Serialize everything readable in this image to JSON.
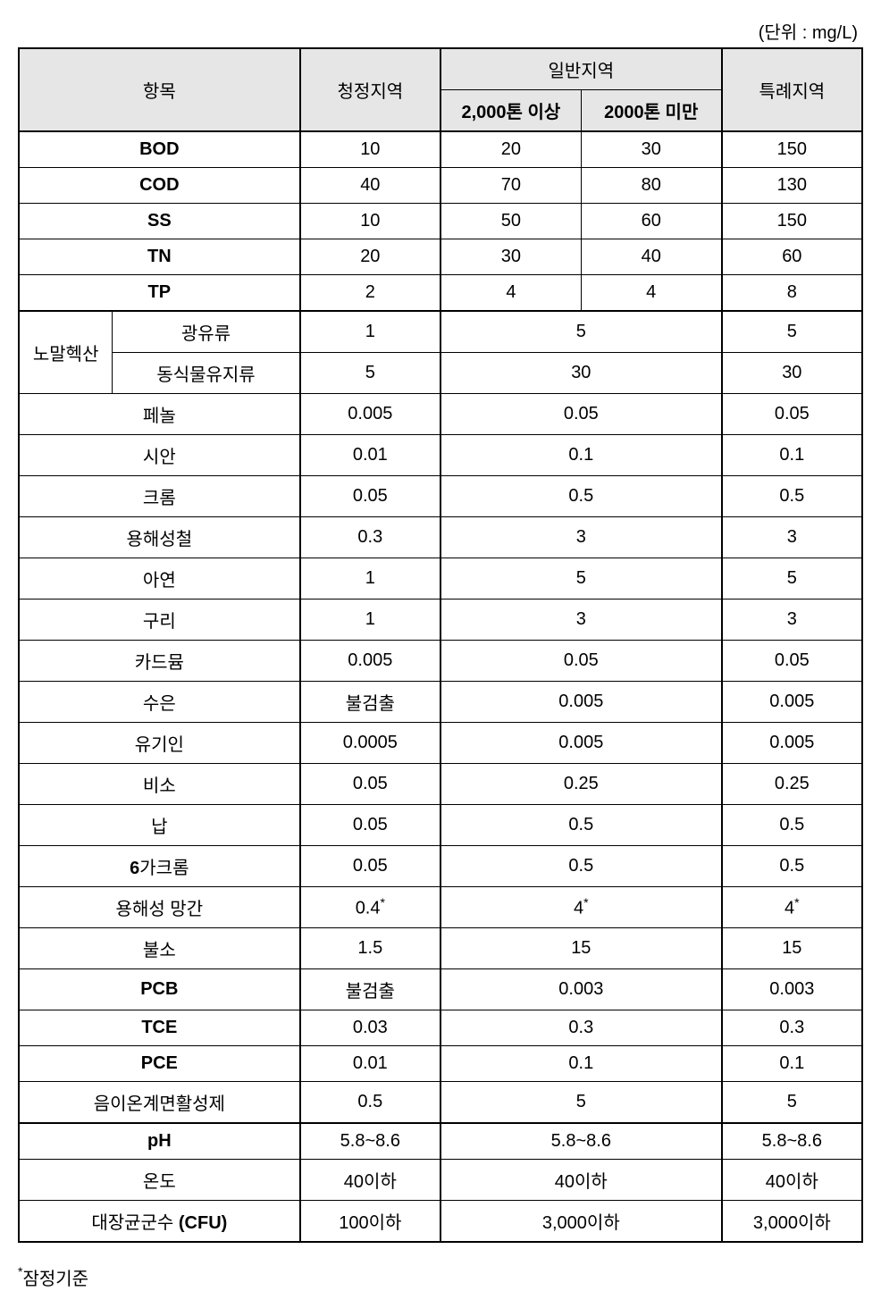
{
  "unit_label": "(단위 : mg/L)",
  "headers": {
    "item": "항목",
    "clean": "청정지역",
    "general": "일반지역",
    "gen_over": "2,000톤 이상",
    "gen_under": "2000톤 미만",
    "special": "특례지역"
  },
  "section1": [
    {
      "label": "BOD",
      "bold": true,
      "clean": "10",
      "over": "20",
      "under": "30",
      "special": "150"
    },
    {
      "label": "COD",
      "bold": true,
      "clean": "40",
      "over": "70",
      "under": "80",
      "special": "130"
    },
    {
      "label": "SS",
      "bold": true,
      "clean": "10",
      "over": "50",
      "under": "60",
      "special": "150"
    },
    {
      "label": "TN",
      "bold": true,
      "clean": "20",
      "over": "30",
      "under": "40",
      "special": "60"
    },
    {
      "label": "TP",
      "bold": true,
      "clean": "2",
      "over": "4",
      "under": "4",
      "special": "8"
    }
  ],
  "hexane_label": "노말헥산",
  "hexane_rows": [
    {
      "sub": "광유류",
      "clean": "1",
      "general": "5",
      "special": "5"
    },
    {
      "sub": "동식물유지류",
      "clean": "5",
      "general": "30",
      "special": "30"
    }
  ],
  "section2": [
    {
      "label": "페놀",
      "clean": "0.005",
      "general": "0.05",
      "special": "0.05"
    },
    {
      "label": "시안",
      "clean": "0.01",
      "general": "0.1",
      "special": "0.1"
    },
    {
      "label": "크롬",
      "clean": "0.05",
      "general": "0.5",
      "special": "0.5"
    },
    {
      "label": "용해성철",
      "clean": "0.3",
      "general": "3",
      "special": "3"
    },
    {
      "label": "아연",
      "clean": "1",
      "general": "5",
      "special": "5"
    },
    {
      "label": "구리",
      "clean": "1",
      "general": "3",
      "special": "3"
    },
    {
      "label": "카드뮴",
      "clean": "0.005",
      "general": "0.05",
      "special": "0.05"
    },
    {
      "label": "수은",
      "clean": "불검출",
      "general": "0.005",
      "special": "0.005"
    },
    {
      "label": "유기인",
      "clean": "0.0005",
      "general": "0.005",
      "special": "0.005"
    },
    {
      "label": "비소",
      "clean": "0.05",
      "general": "0.25",
      "special": "0.25"
    },
    {
      "label": "납",
      "clean": "0.05",
      "general": "0.5",
      "special": "0.5"
    },
    {
      "label": "6가크롬",
      "bold": true,
      "clean": "0.05",
      "general": "0.5",
      "special": "0.5"
    },
    {
      "label": "용해성 망간",
      "clean": "0.4",
      "general": "4",
      "special": "4",
      "star": true
    },
    {
      "label": "불소",
      "clean": "1.5",
      "general": "15",
      "special": "15"
    },
    {
      "label": "PCB",
      "bold": true,
      "clean": "불검출",
      "general": "0.003",
      "special": "0.003"
    },
    {
      "label": "TCE",
      "bold": true,
      "clean": "0.03",
      "general": "0.3",
      "special": "0.3"
    },
    {
      "label": "PCE",
      "bold": true,
      "clean": "0.01",
      "general": "0.1",
      "special": "0.1"
    },
    {
      "label": "음이온계면활성제",
      "clean": "0.5",
      "general": "5",
      "special": "5"
    }
  ],
  "section3": [
    {
      "label": "pH",
      "bold": true,
      "clean": "5.8~8.6",
      "general": "5.8~8.6",
      "special": "5.8~8.6"
    },
    {
      "label": "온도",
      "clean": "40이하",
      "general": "40이하",
      "special": "40이하"
    },
    {
      "label": "대장균군수 (CFU)",
      "bold": true,
      "clean": "100이하",
      "general": "3,000이하",
      "special": "3,000이하"
    }
  ],
  "footnote": "잠정기준",
  "colors": {
    "header_bg": "#e6e6e6",
    "border": "#000000",
    "text": "#000000",
    "background": "#ffffff"
  },
  "col_widths_pct": [
    10,
    20,
    15,
    15,
    15,
    15
  ],
  "font_size_pt": 15
}
